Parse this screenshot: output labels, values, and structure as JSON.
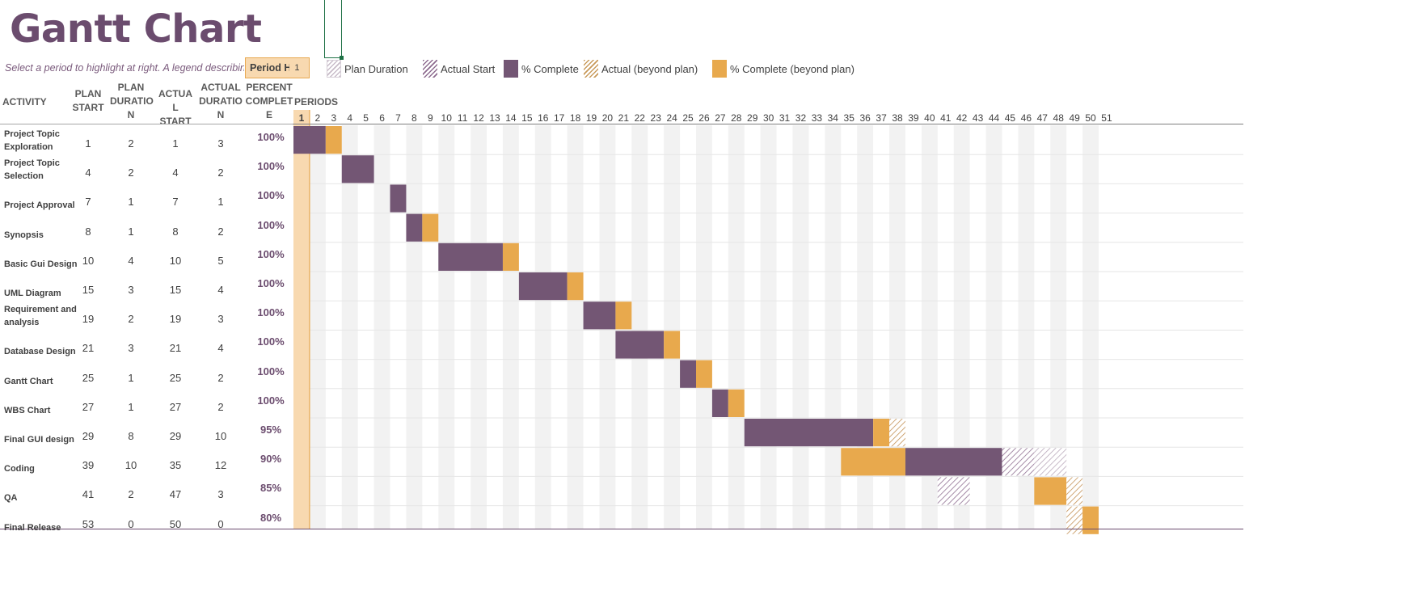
{
  "title": "Gantt Chart",
  "instruction": "Select a period to highlight at right.  A legend describing the charting follows.",
  "period_highlight": {
    "label": "Period Highlight:",
    "value": "1"
  },
  "legend": [
    {
      "label": "Plan Duration",
      "icon": "plan-duration-swatch"
    },
    {
      "label": "Actual Start",
      "icon": "actual-start-swatch"
    },
    {
      "label": "% Complete",
      "icon": "percent-complete-swatch"
    },
    {
      "label": "Actual (beyond plan)",
      "icon": "actual-beyond-plan-swatch"
    },
    {
      "label": "% Complete (beyond plan)",
      "icon": "percent-complete-beyond-plan-swatch"
    }
  ],
  "headers": {
    "activity": "ACTIVITY",
    "plan_start": "PLAN START",
    "plan_duration": "PLAN DURATIO N",
    "actual_start": "ACTUA L START",
    "actual_duration": "ACTUAL DURATIO N",
    "percent_complete": "PERCENT COMPLET E",
    "periods": "PERIODS"
  },
  "colors": {
    "complete": "#735674",
    "beyond_plan": "#e8a94d",
    "highlight": "#f8d9b0",
    "title": "#6b4c6e"
  },
  "chart_data": {
    "type": "gantt",
    "periods": [
      1,
      2,
      3,
      4,
      5,
      6,
      7,
      8,
      9,
      10,
      11,
      12,
      13,
      14,
      15,
      16,
      17,
      18,
      19,
      20,
      21,
      22,
      23,
      24,
      25,
      26,
      27,
      28,
      29,
      30,
      31,
      32,
      33,
      34,
      35,
      36,
      37,
      38,
      39,
      40,
      41,
      42,
      43,
      44,
      45,
      46,
      47,
      48,
      49,
      50,
      51
    ],
    "highlighted_period": 1,
    "activities": [
      {
        "name": "Project Topic Exploration",
        "plan_start": 1,
        "plan_duration": 2,
        "actual_start": 1,
        "actual_duration": 3,
        "percent": "100%"
      },
      {
        "name": "Project Topic Selection",
        "plan_start": 4,
        "plan_duration": 2,
        "actual_start": 4,
        "actual_duration": 2,
        "percent": "100%"
      },
      {
        "name": "Project Approval",
        "plan_start": 7,
        "plan_duration": 1,
        "actual_start": 7,
        "actual_duration": 1,
        "percent": "100%"
      },
      {
        "name": "Synopsis",
        "plan_start": 8,
        "plan_duration": 1,
        "actual_start": 8,
        "actual_duration": 2,
        "percent": "100%"
      },
      {
        "name": "Basic Gui Design",
        "plan_start": 10,
        "plan_duration": 4,
        "actual_start": 10,
        "actual_duration": 5,
        "percent": "100%"
      },
      {
        "name": "UML Diagram",
        "plan_start": 15,
        "plan_duration": 3,
        "actual_start": 15,
        "actual_duration": 4,
        "percent": "100%"
      },
      {
        "name": "Requirement and analysis",
        "plan_start": 19,
        "plan_duration": 2,
        "actual_start": 19,
        "actual_duration": 3,
        "percent": "100%"
      },
      {
        "name": "Database Design",
        "plan_start": 21,
        "plan_duration": 3,
        "actual_start": 21,
        "actual_duration": 4,
        "percent": "100%"
      },
      {
        "name": "Gantt Chart",
        "plan_start": 25,
        "plan_duration": 1,
        "actual_start": 25,
        "actual_duration": 2,
        "percent": "100%"
      },
      {
        "name": "WBS Chart",
        "plan_start": 27,
        "plan_duration": 1,
        "actual_start": 27,
        "actual_duration": 2,
        "percent": "100%"
      },
      {
        "name": "Final GUI design",
        "plan_start": 29,
        "plan_duration": 8,
        "actual_start": 29,
        "actual_duration": 10,
        "percent": "95%"
      },
      {
        "name": "Coding",
        "plan_start": 39,
        "plan_duration": 10,
        "actual_start": 35,
        "actual_duration": 12,
        "percent": "90%"
      },
      {
        "name": "QA",
        "plan_start": 41,
        "plan_duration": 2,
        "actual_start": 47,
        "actual_duration": 3,
        "percent": "85%"
      },
      {
        "name": "Final Release",
        "plan_start": 53,
        "plan_duration": 0,
        "actual_start": 50,
        "actual_duration": 0,
        "percent": "80%"
      }
    ],
    "bars": [
      {
        "activity": "Project Topic Exploration",
        "segments": [
          {
            "kind": "complete",
            "from": 1,
            "to": 2
          },
          {
            "kind": "beyond_complete",
            "from": 3,
            "to": 3
          }
        ]
      },
      {
        "activity": "Project Topic Selection",
        "segments": [
          {
            "kind": "complete",
            "from": 4,
            "to": 5
          }
        ]
      },
      {
        "activity": "Project Approval",
        "segments": [
          {
            "kind": "complete",
            "from": 7,
            "to": 7
          }
        ]
      },
      {
        "activity": "Synopsis",
        "segments": [
          {
            "kind": "complete",
            "from": 8,
            "to": 8
          },
          {
            "kind": "beyond_complete",
            "from": 9,
            "to": 9
          }
        ]
      },
      {
        "activity": "Basic Gui Design",
        "segments": [
          {
            "kind": "complete",
            "from": 10,
            "to": 13
          },
          {
            "kind": "beyond_complete",
            "from": 14,
            "to": 14
          }
        ]
      },
      {
        "activity": "UML Diagram",
        "segments": [
          {
            "kind": "complete",
            "from": 15,
            "to": 17
          },
          {
            "kind": "beyond_complete",
            "from": 18,
            "to": 18
          }
        ]
      },
      {
        "activity": "Requirement and analysis",
        "segments": [
          {
            "kind": "complete",
            "from": 19,
            "to": 20
          },
          {
            "kind": "beyond_complete",
            "from": 21,
            "to": 21
          }
        ]
      },
      {
        "activity": "Database Design",
        "segments": [
          {
            "kind": "complete",
            "from": 21,
            "to": 23
          },
          {
            "kind": "beyond_complete",
            "from": 24,
            "to": 24
          }
        ]
      },
      {
        "activity": "Gantt Chart",
        "segments": [
          {
            "kind": "complete",
            "from": 25,
            "to": 25
          },
          {
            "kind": "beyond_complete",
            "from": 26,
            "to": 26
          }
        ]
      },
      {
        "activity": "WBS Chart",
        "segments": [
          {
            "kind": "complete",
            "from": 27,
            "to": 27
          },
          {
            "kind": "beyond_complete",
            "from": 28,
            "to": 28
          }
        ]
      },
      {
        "activity": "Final GUI design",
        "segments": [
          {
            "kind": "complete",
            "from": 29,
            "to": 36
          },
          {
            "kind": "beyond_complete",
            "from": 37,
            "to": 37
          },
          {
            "kind": "beyond_hatch",
            "from": 38,
            "to": 38
          }
        ]
      },
      {
        "activity": "Coding",
        "segments": [
          {
            "kind": "beyond_complete",
            "from": 35,
            "to": 38
          },
          {
            "kind": "complete",
            "from": 39,
            "to": 44
          },
          {
            "kind": "actual_hatch",
            "from": 45,
            "to": 46
          },
          {
            "kind": "plan_hatch",
            "from": 47,
            "to": 48
          }
        ]
      },
      {
        "activity": "QA",
        "segments": [
          {
            "kind": "actual_hatch",
            "from": 41,
            "to": 42
          },
          {
            "kind": "beyond_complete",
            "from": 47,
            "to": 48
          },
          {
            "kind": "beyond_hatch",
            "from": 49,
            "to": 49
          }
        ]
      },
      {
        "activity": "Final Release",
        "segments": [
          {
            "kind": "beyond_hatch",
            "from": 49,
            "to": 49
          },
          {
            "kind": "beyond_complete",
            "from": 50,
            "to": 50
          }
        ]
      }
    ]
  }
}
